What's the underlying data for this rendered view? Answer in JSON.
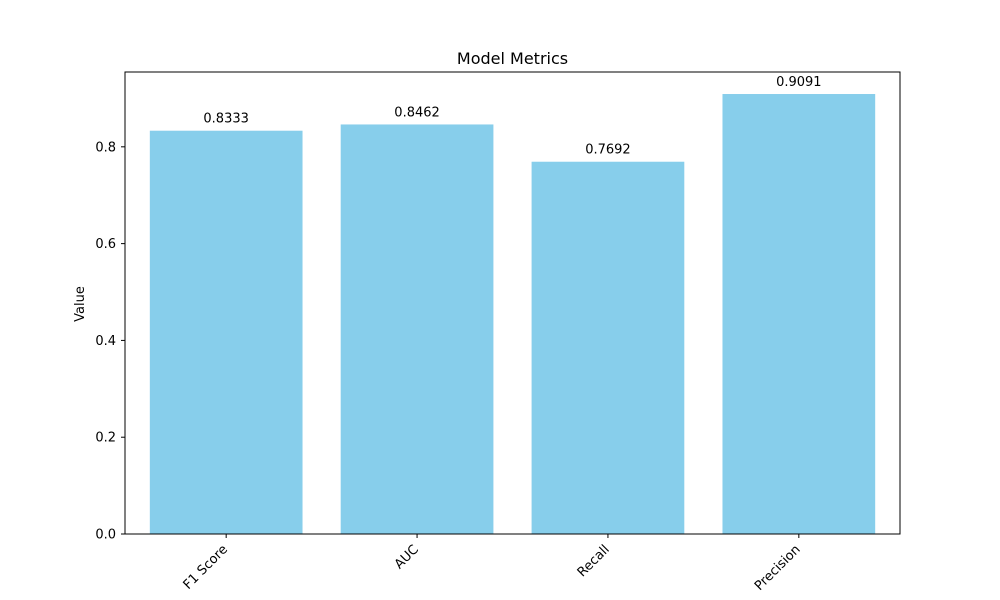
{
  "chart_data": {
    "type": "bar",
    "title": "Model Metrics",
    "xlabel": "",
    "ylabel": "Value",
    "categories": [
      "F1 Score",
      "AUC",
      "Recall",
      "Precision"
    ],
    "values": [
      0.8333,
      0.8462,
      0.7692,
      0.9091
    ],
    "data_labels": [
      "0.8333",
      "0.8462",
      "0.7692",
      "0.9091"
    ],
    "yticks": [
      0.0,
      0.2,
      0.4,
      0.6,
      0.8
    ],
    "ytick_labels": [
      "0.0",
      "0.2",
      "0.4",
      "0.6",
      "0.8"
    ],
    "ylim": [
      0,
      0.9546
    ],
    "grid": false,
    "legend": "none",
    "colors": {
      "bar": "#87ceeb",
      "axis": "#000000",
      "text": "#000000",
      "background": "#ffffff"
    }
  }
}
